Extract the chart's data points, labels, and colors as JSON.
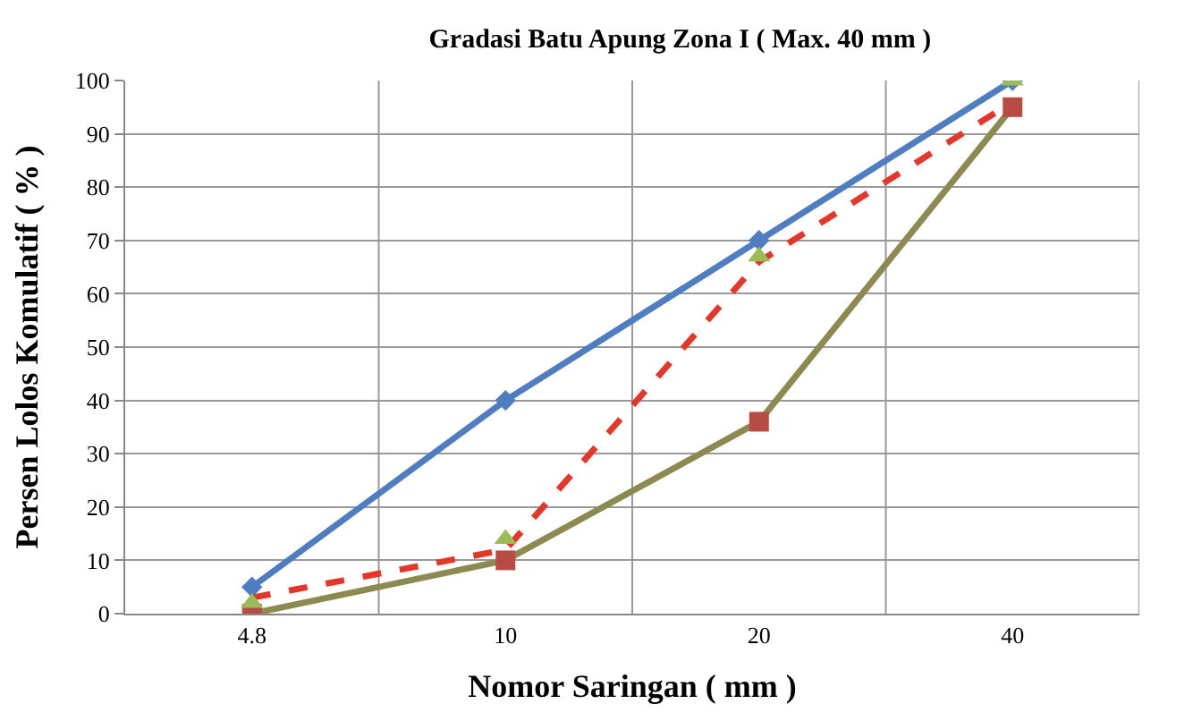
{
  "chart_data": {
    "type": "line",
    "title": "Gradasi Batu Apung Zona I ( Max. 40 mm )",
    "xlabel": "Nomor Saringan ( mm )",
    "ylabel": "Persen Lolos Komulatif ( % )",
    "categories": [
      "4.8",
      "10",
      "20",
      "40"
    ],
    "series": [
      {
        "color": "#4f7dbf",
        "values": [
          5,
          40,
          70,
          100
        ],
        "marker": "diamond",
        "line_style": "solid"
      },
      {
        "color": "#e0392b",
        "values": [
          3,
          12,
          66,
          96
        ],
        "marker": "none",
        "line_style": "dashed"
      },
      {
        "color": "#8c8a50",
        "values": [
          0,
          10,
          36,
          95
        ],
        "marker": "none",
        "line_style": "solid"
      },
      {
        "type": "scatter",
        "color": "#b84c45",
        "values": [
          0,
          10,
          36,
          95
        ],
        "marker": "square"
      },
      {
        "type": "scatter",
        "color": "#9bbb59",
        "values": [
          2,
          14,
          67,
          100
        ],
        "marker": "triangle"
      }
    ],
    "ylim": [
      0,
      100
    ],
    "yticks": [
      0,
      10,
      20,
      30,
      40,
      50,
      60,
      70,
      80,
      90,
      100
    ],
    "grid": true
  }
}
